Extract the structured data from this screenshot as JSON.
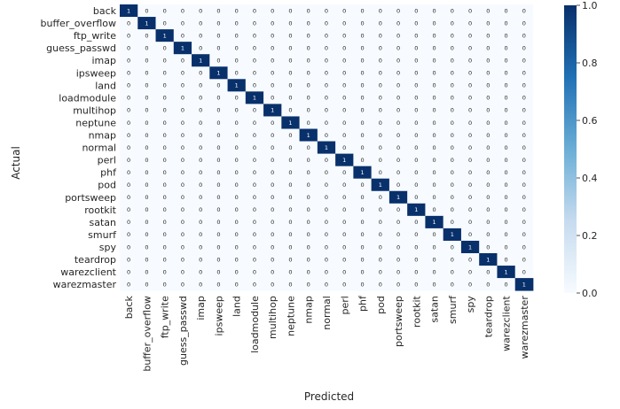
{
  "chart_data": {
    "type": "heatmap",
    "title": "",
    "xlabel": "Predicted",
    "ylabel": "Actual",
    "categories": [
      "back",
      "buffer_overflow",
      "ftp_write",
      "guess_passwd",
      "imap",
      "ipsweep",
      "land",
      "loadmodule",
      "multihop",
      "neptune",
      "nmap",
      "normal",
      "perl",
      "phf",
      "pod",
      "portsweep",
      "rootkit",
      "satan",
      "smurf",
      "spy",
      "teardrop",
      "warezclient",
      "warezmaster"
    ],
    "matrix": [
      [
        1,
        0,
        0,
        0,
        0,
        0,
        0,
        0,
        0,
        0,
        0,
        0,
        0,
        0,
        0,
        0,
        0,
        0,
        0,
        0,
        0,
        0,
        0
      ],
      [
        0,
        1,
        0,
        0,
        0,
        0,
        0,
        0,
        0,
        0,
        0,
        0,
        0,
        0,
        0,
        0,
        0,
        0,
        0,
        0,
        0,
        0,
        0
      ],
      [
        0,
        0,
        1,
        0,
        0,
        0,
        0,
        0,
        0,
        0,
        0,
        0,
        0,
        0,
        0,
        0,
        0,
        0,
        0,
        0,
        0,
        0,
        0
      ],
      [
        0,
        0,
        0,
        1,
        0,
        0,
        0,
        0,
        0,
        0,
        0,
        0,
        0,
        0,
        0,
        0,
        0,
        0,
        0,
        0,
        0,
        0,
        0
      ],
      [
        0,
        0,
        0,
        0,
        1,
        0,
        0,
        0,
        0,
        0,
        0,
        0,
        0,
        0,
        0,
        0,
        0,
        0,
        0,
        0,
        0,
        0,
        0
      ],
      [
        0,
        0,
        0,
        0,
        0,
        1,
        0,
        0,
        0,
        0,
        0,
        0,
        0,
        0,
        0,
        0,
        0,
        0,
        0,
        0,
        0,
        0,
        0
      ],
      [
        0,
        0,
        0,
        0,
        0,
        0,
        1,
        0,
        0,
        0,
        0,
        0,
        0,
        0,
        0,
        0,
        0,
        0,
        0,
        0,
        0,
        0,
        0
      ],
      [
        0,
        0,
        0,
        0,
        0,
        0,
        0,
        1,
        0,
        0,
        0,
        0,
        0,
        0,
        0,
        0,
        0,
        0,
        0,
        0,
        0,
        0,
        0
      ],
      [
        0,
        0,
        0,
        0,
        0,
        0,
        0,
        0,
        1,
        0,
        0,
        0,
        0,
        0,
        0,
        0,
        0,
        0,
        0,
        0,
        0,
        0,
        0
      ],
      [
        0,
        0,
        0,
        0,
        0,
        0,
        0,
        0,
        0,
        1,
        0,
        0,
        0,
        0,
        0,
        0,
        0,
        0,
        0,
        0,
        0,
        0,
        0
      ],
      [
        0,
        0,
        0,
        0,
        0,
        0,
        0,
        0,
        0,
        0,
        1,
        0,
        0,
        0,
        0,
        0,
        0,
        0,
        0,
        0,
        0,
        0,
        0
      ],
      [
        0,
        0,
        0,
        0,
        0,
        0,
        0,
        0,
        0,
        0,
        0,
        1,
        0,
        0,
        0,
        0,
        0,
        0,
        0,
        0,
        0,
        0,
        0
      ],
      [
        0,
        0,
        0,
        0,
        0,
        0,
        0,
        0,
        0,
        0,
        0,
        0,
        1,
        0,
        0,
        0,
        0,
        0,
        0,
        0,
        0,
        0,
        0
      ],
      [
        0,
        0,
        0,
        0,
        0,
        0,
        0,
        0,
        0,
        0,
        0,
        0,
        0,
        1,
        0,
        0,
        0,
        0,
        0,
        0,
        0,
        0,
        0
      ],
      [
        0,
        0,
        0,
        0,
        0,
        0,
        0,
        0,
        0,
        0,
        0,
        0,
        0,
        0,
        1,
        0,
        0,
        0,
        0,
        0,
        0,
        0,
        0
      ],
      [
        0,
        0,
        0,
        0,
        0,
        0,
        0,
        0,
        0,
        0,
        0,
        0,
        0,
        0,
        0,
        1,
        0,
        0,
        0,
        0,
        0,
        0,
        0
      ],
      [
        0,
        0,
        0,
        0,
        0,
        0,
        0,
        0,
        0,
        0,
        0,
        0,
        0,
        0,
        0,
        0,
        1,
        0,
        0,
        0,
        0,
        0,
        0
      ],
      [
        0,
        0,
        0,
        0,
        0,
        0,
        0,
        0,
        0,
        0,
        0,
        0,
        0,
        0,
        0,
        0,
        0,
        1,
        0,
        0,
        0,
        0,
        0
      ],
      [
        0,
        0,
        0,
        0,
        0,
        0,
        0,
        0,
        0,
        0,
        0,
        0,
        0,
        0,
        0,
        0,
        0,
        0,
        1,
        0,
        0,
        0,
        0
      ],
      [
        0,
        0,
        0,
        0,
        0,
        0,
        0,
        0,
        0,
        0,
        0,
        0,
        0,
        0,
        0,
        0,
        0,
        0,
        0,
        1,
        0,
        0,
        0
      ],
      [
        0,
        0,
        0,
        0,
        0,
        0,
        0,
        0,
        0,
        0,
        0,
        0,
        0,
        0,
        0,
        0,
        0,
        0,
        0,
        0,
        1,
        0,
        0
      ],
      [
        0,
        0,
        0,
        0,
        0,
        0,
        0,
        0,
        0,
        0,
        0,
        0,
        0,
        0,
        0,
        0,
        0,
        0,
        0,
        0,
        0,
        1,
        0
      ],
      [
        0,
        0,
        0,
        0,
        0,
        0,
        0,
        0,
        0,
        0,
        0,
        0,
        0,
        0,
        0,
        0,
        0,
        0,
        0,
        0,
        0,
        0,
        1
      ]
    ],
    "colorbar": {
      "range": [
        0.0,
        1.0
      ],
      "ticks": [
        "0.0",
        "0.2",
        "0.4",
        "0.6",
        "0.8",
        "1.0"
      ],
      "low_color": "#f7fbff",
      "high_color": "#08306b"
    },
    "grid": false,
    "legend": "colorbar-right"
  }
}
